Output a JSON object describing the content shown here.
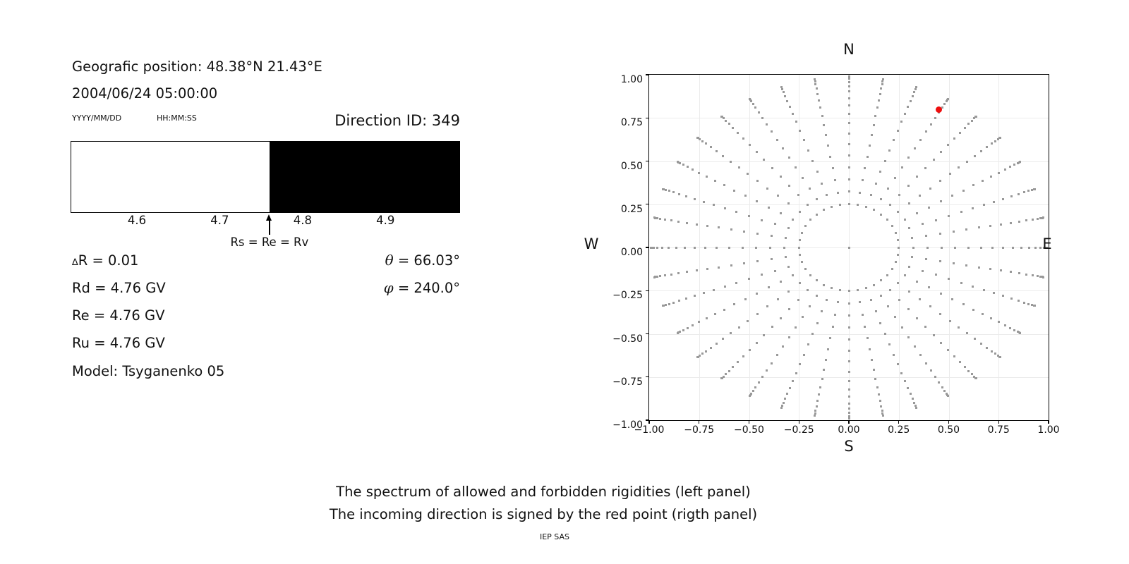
{
  "left_panel": {
    "geo_position": "Geografic position: 48.38°N 21.43°E",
    "datetime": "2004/06/24 05:00:00",
    "date_format_label": "YYYY/MM/DD",
    "time_format_label": "HH:MM:SS",
    "direction_id": "Direction ID: 349",
    "bar": {
      "scale_min": 4.52,
      "scale_max": 4.99,
      "boundary_value": 4.76,
      "ticks": [
        4.6,
        4.7,
        4.8,
        4.9
      ],
      "allowed_color": "#ffffff",
      "forbidden_color": "#000000",
      "arrow_label": "Rs = Re = Rv"
    },
    "delta": {
      "symbol": "∆",
      "text": "R = 0.01"
    },
    "rd": "Rd = 4.76 GV",
    "re": "Re = 4.76 GV",
    "ru": "Ru = 4.76 GV",
    "model": "Model: Tsyganenko 05",
    "theta": {
      "symbol": "θ",
      "text": " = 66.03°"
    },
    "phi": {
      "symbol": "φ",
      "text": " = 240.0°"
    }
  },
  "chart_data": {
    "type": "scatter",
    "title": "",
    "xlabel": "S",
    "compass": {
      "top": "N",
      "bottom": "S",
      "left": "W",
      "right": "E"
    },
    "xlim": [
      -1,
      1
    ],
    "ylim": [
      -1,
      1
    ],
    "xticks": [
      -1,
      -0.75,
      -0.5,
      -0.25,
      0,
      0.25,
      0.5,
      0.75,
      1
    ],
    "yticks": [
      -1,
      -0.75,
      -0.5,
      -0.25,
      0,
      0.25,
      0.5,
      0.75,
      1
    ],
    "xtick_labels": [
      "−1.00",
      "−0.75",
      "−0.50",
      "−0.25",
      "0.00",
      "0.25",
      "0.50",
      "0.75",
      "1.00"
    ],
    "ytick_labels": [
      "−1.00",
      "−0.75",
      "−0.50",
      "−0.25",
      "0.00",
      "0.25",
      "0.50",
      "0.75",
      "1.00"
    ],
    "grid": true,
    "grid_color": "#ebebeb",
    "dot_color": "#999999",
    "series": [
      {
        "name": "asymptotic-direction-spokes",
        "pattern": "radial-spokes",
        "spoke_count": 36,
        "spoke_step_deg": 10,
        "spoke_start_deg": 0,
        "dots_per_spoke": 17,
        "r_inner": 0.25,
        "r_outer": 0.99,
        "radial_profile": "sin-ease-out (dots bunch toward outer tip, inner ring at r=0.25)"
      },
      {
        "name": "center-dot",
        "points": [
          [
            0,
            0
          ]
        ]
      }
    ],
    "red_point": {
      "x": 0.45,
      "y": 0.8,
      "color": "#ee0e0e"
    }
  },
  "captions": {
    "line1": "The spectrum of allowed and forbidden rigidities (left panel)",
    "line2": "The incoming direction is signed by the red point (rigth panel)",
    "credit": "IEP SAS"
  }
}
